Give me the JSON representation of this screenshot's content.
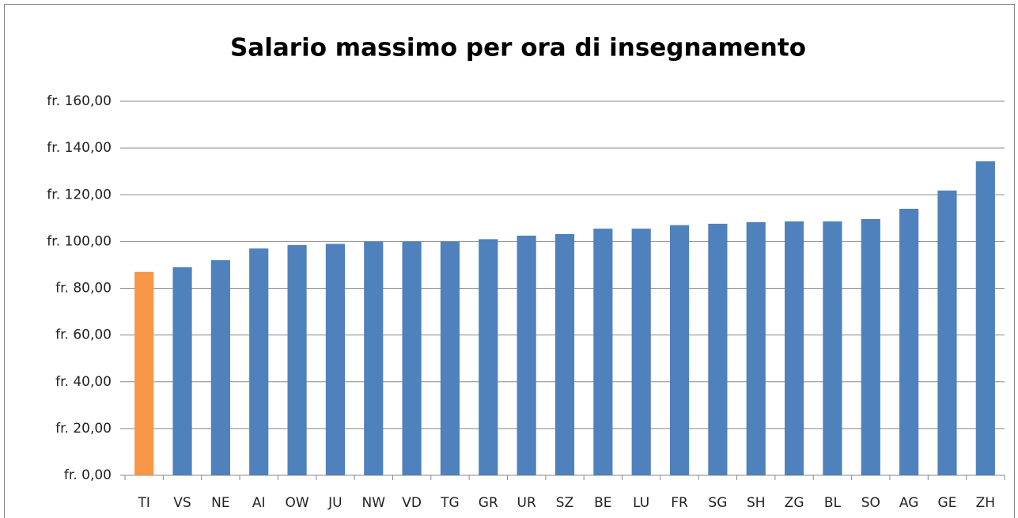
{
  "chart_data": {
    "type": "bar",
    "title": "Salario massimo per ora di insegnamento",
    "categories": [
      "TI",
      "VS",
      "NE",
      "AI",
      "OW",
      "JU",
      "NW",
      "VD",
      "TG",
      "GR",
      "UR",
      "SZ",
      "BE",
      "LU",
      "FR",
      "SG",
      "SH",
      "ZG",
      "BL",
      "SO",
      "AG",
      "GE",
      "ZH"
    ],
    "values": [
      87,
      89,
      92,
      97,
      98.5,
      99,
      100,
      100,
      100,
      101,
      102.5,
      103.2,
      105.5,
      105.5,
      107,
      107.6,
      108.3,
      108.6,
      108.6,
      109.6,
      114,
      121.8,
      134.3
    ],
    "colors": [
      "#f79646",
      "#4f81bd",
      "#4f81bd",
      "#4f81bd",
      "#4f81bd",
      "#4f81bd",
      "#4f81bd",
      "#4f81bd",
      "#4f81bd",
      "#4f81bd",
      "#4f81bd",
      "#4f81bd",
      "#4f81bd",
      "#4f81bd",
      "#4f81bd",
      "#4f81bd",
      "#4f81bd",
      "#4f81bd",
      "#4f81bd",
      "#4f81bd",
      "#4f81bd",
      "#4f81bd",
      "#4f81bd"
    ],
    "ylim": [
      0,
      160
    ],
    "yticks": [
      {
        "value": 0,
        "label": "fr. 0,00"
      },
      {
        "value": 20,
        "label": "fr. 20,00"
      },
      {
        "value": 40,
        "label": "fr. 40,00"
      },
      {
        "value": 60,
        "label": "fr. 60,00"
      },
      {
        "value": 80,
        "label": "fr. 80,00"
      },
      {
        "value": 100,
        "label": "fr. 100,00"
      },
      {
        "value": 120,
        "label": "fr. 120,00"
      },
      {
        "value": 140,
        "label": "fr. 140,00"
      },
      {
        "value": 160,
        "label": "fr. 160,00"
      }
    ],
    "grid": true
  }
}
